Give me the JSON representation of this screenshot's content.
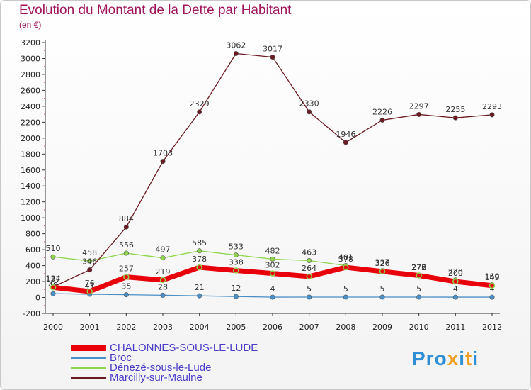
{
  "title": "Evolution du Montant de la Dette par Habitant",
  "subtitle": "(en €)",
  "logo": "Proxiti",
  "chart_data": {
    "type": "line",
    "title": "Evolution du Montant de la Dette par Habitant",
    "ylabel": "(en €)",
    "x": [
      "2000",
      "2001",
      "2002",
      "2003",
      "2004",
      "2005",
      "2006",
      "2007",
      "2008",
      "2009",
      "2010",
      "2011",
      "2012"
    ],
    "y_ticks": [
      -200,
      0,
      200,
      400,
      600,
      800,
      1000,
      1200,
      1400,
      1600,
      1800,
      2000,
      2200,
      2400,
      2600,
      2800,
      3000,
      3200
    ],
    "ylim": [
      -200,
      3200
    ],
    "grid": false,
    "legend_position": "bottom-left",
    "series": [
      {
        "name": "CHALONNES-SOUS-LE-LUDE",
        "color": "#e8000b",
        "values": [
          127,
          76,
          257,
          219,
          378,
          338,
          302,
          264,
          378,
          326,
          276,
          200,
          149
        ]
      },
      {
        "name": "Broc",
        "color": "#4a8fc8",
        "values": [
          48,
          41,
          35,
          28,
          21,
          12,
          4,
          5,
          5,
          5,
          5,
          4,
          4
        ]
      },
      {
        "name": "Dénezé-sous-le-Lude",
        "color": "#8fd44c",
        "values": [
          510,
          458,
          556,
          497,
          585,
          533,
          482,
          463,
          401,
          337,
          272,
          220,
          160
        ]
      },
      {
        "name": "Marcilly-sur-Maulne",
        "color": "#6b1a22",
        "values": [
          134,
          346,
          884,
          1708,
          2329,
          3062,
          3017,
          2330,
          1946,
          2226,
          2297,
          2255,
          2293
        ]
      }
    ]
  }
}
